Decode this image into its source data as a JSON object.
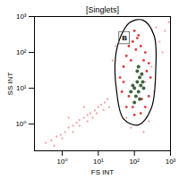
{
  "chart_data": {
    "type": "scatter",
    "title": "[Singlets]",
    "x_label": "FS INT",
    "y_label": "SS INT",
    "log": true,
    "xlim": [
      0.17,
      1000
    ],
    "ylim": [
      0.18,
      1000
    ],
    "xticks": [
      {
        "value": 1,
        "label": "10⁰"
      },
      {
        "value": 10,
        "label": "10¹"
      },
      {
        "value": 100,
        "label": "10²"
      },
      {
        "value": 1000,
        "label": "10³"
      }
    ],
    "yticks": [
      {
        "value": 1,
        "label": "10⁰"
      },
      {
        "value": 10,
        "label": "10¹"
      },
      {
        "value": 100,
        "label": "10²"
      },
      {
        "value": 1000,
        "label": "10³"
      }
    ],
    "series": [
      {
        "color": "#f08a8a",
        "x": [
          0.35,
          0.5,
          0.7,
          0.9,
          1.2,
          1.5,
          2,
          2.5,
          3,
          4,
          5,
          6,
          8,
          10,
          12,
          15,
          18,
          0.6,
          1,
          2,
          3,
          5,
          7,
          9,
          14,
          20,
          1.5,
          4,
          25,
          30,
          500,
          700,
          900,
          400,
          600,
          300,
          200,
          350,
          250,
          180,
          80,
          60
        ],
        "y": [
          0.3,
          0.35,
          0.45,
          0.5,
          0.6,
          0.8,
          0.9,
          1.1,
          1.3,
          1.5,
          1.8,
          2,
          2.4,
          3,
          3.5,
          4,
          5,
          0.25,
          0.4,
          0.6,
          0.9,
          1.2,
          1.5,
          2,
          2.5,
          3,
          1.5,
          3,
          60,
          150,
          200,
          400,
          700,
          500,
          100,
          40,
          15,
          8,
          1.2,
          0.6,
          0.8,
          1.5
        ]
      },
      {
        "color": "#d81010",
        "x": [
          40,
          50,
          60,
          70,
          90,
          120,
          150,
          200,
          250,
          280,
          250,
          200,
          150,
          100,
          60,
          45,
          50,
          80,
          110,
          180,
          220,
          160,
          90,
          70,
          130,
          100
        ],
        "y": [
          20,
          40,
          80,
          150,
          200,
          250,
          150,
          100,
          50,
          20,
          6,
          3,
          2,
          1.8,
          3,
          8,
          15,
          60,
          120,
          60,
          30,
          5,
          3,
          6,
          300,
          400
        ]
      },
      {
        "color": "#1f4a1f",
        "x": [
          100,
          120,
          140,
          110,
          130,
          150,
          160,
          90,
          140,
          170,
          120,
          100,
          80,
          130,
          180
        ],
        "y": [
          10,
          15,
          20,
          6,
          8,
          12,
          25,
          12,
          5,
          15,
          30,
          4,
          8,
          40,
          10
        ]
      }
    ],
    "gate": {
      "x": [
        43,
        74,
        170,
        350,
        390,
        295,
        130,
        50,
        32,
        30
      ],
      "y": [
        300,
        680,
        800,
        300,
        33,
        2.8,
        0.95,
        1.4,
        8.5,
        76
      ]
    },
    "annotations": [
      {
        "text": "B",
        "x1": 38,
        "x2": 74,
        "y1": 170,
        "y2": 370
      }
    ]
  }
}
